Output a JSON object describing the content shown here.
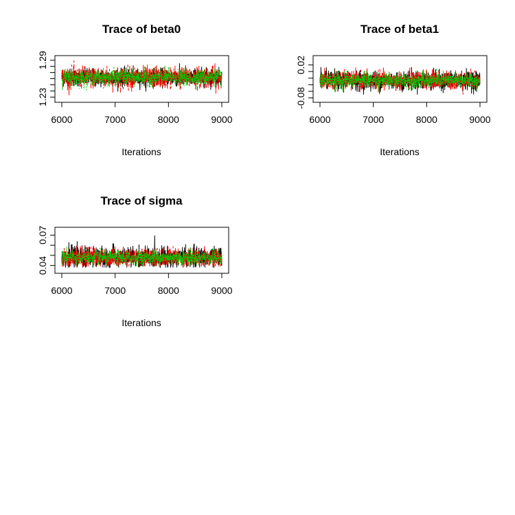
{
  "colors": {
    "chain1": "#000000",
    "chain2": "#ff0000",
    "chain3": "#00cc00"
  },
  "chart_data": [
    {
      "type": "line",
      "title": "Trace of beta0",
      "xlabel": "Iterations",
      "ylabel": "",
      "x_ticks": [
        "6000",
        "7000",
        "8000",
        "9000"
      ],
      "y_ticks": [
        "1.23",
        "1.29"
      ],
      "xlim": [
        6000,
        9000
      ],
      "ylim": [
        1.226,
        1.293
      ],
      "y_minor_step": 0.01,
      "series": [
        {
          "values_summary": {
            "mean": 1.262,
            "min": 1.239,
            "max": 1.285
          }
        },
        {
          "values_summary": {
            "mean": 1.262,
            "min": 1.233,
            "max": 1.29
          }
        },
        {
          "values_summary": {
            "mean": 1.262,
            "min": 1.24,
            "max": 1.282
          }
        }
      ]
    },
    {
      "type": "line",
      "title": "Trace of beta1",
      "xlabel": "Iterations",
      "ylabel": "",
      "x_ticks": [
        "6000",
        "7000",
        "8000",
        "9000"
      ],
      "y_ticks": [
        "-0.08",
        "0.02"
      ],
      "xlim": [
        6000,
        9000
      ],
      "ylim": [
        -0.085,
        0.04
      ],
      "y_minor_step": 0.02,
      "series": [
        {
          "values_summary": {
            "mean": -0.027,
            "min": -0.07,
            "max": 0.022
          }
        },
        {
          "values_summary": {
            "mean": -0.027,
            "min": -0.079,
            "max": 0.012
          }
        },
        {
          "values_summary": {
            "mean": -0.027,
            "min": -0.065,
            "max": 0.01
          }
        }
      ]
    },
    {
      "type": "line",
      "title": "Trace of sigma",
      "xlabel": "Iterations",
      "ylabel": "",
      "x_ticks": [
        "6000",
        "7000",
        "8000",
        "9000"
      ],
      "y_ticks": [
        "0.04",
        "0.07"
      ],
      "xlim": [
        6000,
        9000
      ],
      "ylim": [
        0.035,
        0.075
      ],
      "y_minor_step": 0.01,
      "series": [
        {
          "values_summary": {
            "mean": 0.0478,
            "min": 0.038,
            "max": 0.071
          }
        },
        {
          "values_summary": {
            "mean": 0.0478,
            "min": 0.039,
            "max": 0.07
          }
        },
        {
          "values_summary": {
            "mean": 0.0478,
            "min": 0.039,
            "max": 0.062
          }
        }
      ]
    }
  ]
}
